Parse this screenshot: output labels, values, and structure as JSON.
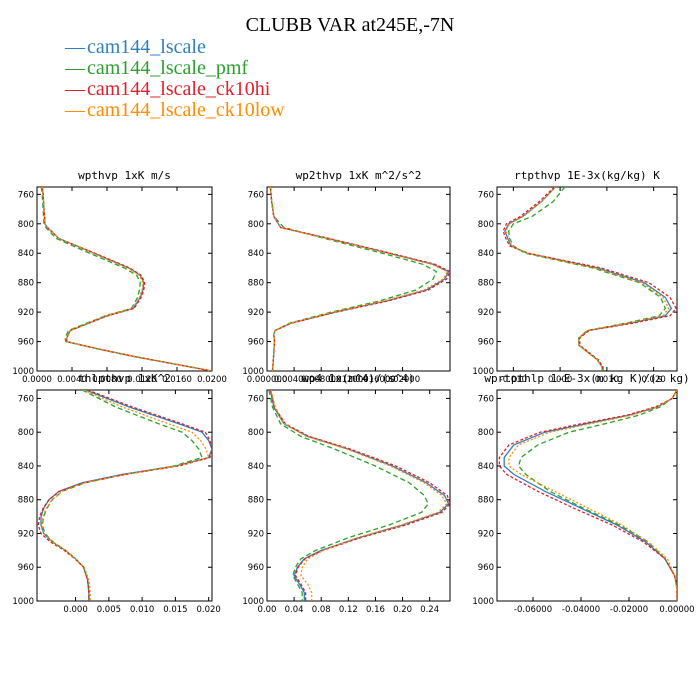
{
  "title": "CLUBB VAR at245E,-7N",
  "legend": [
    {
      "name": "cam144_lscale",
      "color": "#2f7fbf"
    },
    {
      "name": "cam144_lscale_pmf",
      "color": "#2ca02c"
    },
    {
      "name": "cam144_lscale_ck10hi",
      "color": "#e0202a"
    },
    {
      "name": "cam144_lscale_ck10low",
      "color": "#ff8c00"
    }
  ],
  "chart_data": [
    {
      "type": "line",
      "title": "wpthvp  1xK m/s",
      "xlim": [
        0,
        0.02
      ],
      "ylim": [
        1000,
        750
      ],
      "y_reversed": true,
      "xticks": [
        "0.0000",
        "0.0040",
        "0.0080",
        "0.0120",
        "0.0160",
        "0.0200"
      ],
      "xtick_values": [
        0,
        0.004,
        0.008,
        0.012,
        0.016,
        0.02
      ],
      "yticks": [
        "760",
        "800",
        "840",
        "880",
        "920",
        "960",
        "1000"
      ],
      "ytick_values": [
        760,
        800,
        840,
        880,
        920,
        960,
        1000
      ],
      "y": [
        750,
        760,
        780,
        800,
        805,
        820,
        840,
        860,
        870,
        880,
        890,
        900,
        915,
        925,
        945,
        950,
        955,
        960,
        970,
        980,
        990,
        1000
      ],
      "series": [
        {
          "x": [
            0.0006,
            0.0007,
            0.0008,
            0.0009,
            0.0012,
            0.0025,
            0.0065,
            0.0105,
            0.0118,
            0.0122,
            0.0121,
            0.0118,
            0.011,
            0.008,
            0.0038,
            0.0036,
            0.0034,
            0.0034,
            0.007,
            0.011,
            0.0155,
            0.02
          ]
        },
        {
          "x": [
            0.0005,
            0.0006,
            0.0007,
            0.0008,
            0.001,
            0.0022,
            0.006,
            0.01,
            0.0114,
            0.0118,
            0.0117,
            0.0115,
            0.0108,
            0.0078,
            0.0036,
            0.0034,
            0.0032,
            0.0033,
            0.0069,
            0.0109,
            0.0154,
            0.02
          ]
        },
        {
          "x": [
            0.0006,
            0.0007,
            0.0008,
            0.0009,
            0.0012,
            0.0025,
            0.0066,
            0.0106,
            0.0119,
            0.0123,
            0.0122,
            0.0119,
            0.0111,
            0.0081,
            0.0038,
            0.0036,
            0.0034,
            0.0034,
            0.007,
            0.011,
            0.0155,
            0.02
          ]
        },
        {
          "x": [
            0.0006,
            0.0007,
            0.0008,
            0.0009,
            0.0012,
            0.0025,
            0.0064,
            0.0104,
            0.0117,
            0.0121,
            0.012,
            0.0117,
            0.0109,
            0.0079,
            0.0038,
            0.0036,
            0.0034,
            0.0034,
            0.007,
            0.011,
            0.0155,
            0.02
          ]
        }
      ]
    },
    {
      "type": "line",
      "title": "wp2thvp  1xK m^2/s^2",
      "xlim": [
        0,
        0.027
      ],
      "ylim": [
        1000,
        750
      ],
      "y_reversed": true,
      "xticks": [
        "0.000000",
        "0.004000",
        "0.008000",
        "0.012000",
        "0.016000",
        "0.02000"
      ],
      "xtick_values": [
        0,
        0.004,
        0.008,
        0.012,
        0.016,
        0.02
      ],
      "yticks": [
        "760",
        "800",
        "840",
        "880",
        "920",
        "960",
        "1000"
      ],
      "ytick_values": [
        760,
        800,
        840,
        880,
        920,
        960,
        1000
      ],
      "y": [
        750,
        770,
        790,
        805,
        820,
        840,
        855,
        865,
        875,
        890,
        905,
        920,
        935,
        945,
        950,
        960,
        975,
        990,
        1000
      ],
      "series": [
        {
          "x": [
            0.0005,
            0.0007,
            0.001,
            0.002,
            0.009,
            0.018,
            0.0245,
            0.0268,
            0.0262,
            0.0235,
            0.0175,
            0.01,
            0.0035,
            0.0012,
            0.001,
            0.0011,
            0.001,
            0.0009,
            0.0008
          ]
        },
        {
          "x": [
            0.0005,
            0.0007,
            0.001,
            0.0025,
            0.0085,
            0.017,
            0.023,
            0.025,
            0.0245,
            0.022,
            0.0165,
            0.0095,
            0.0033,
            0.0012,
            0.001,
            0.0011,
            0.001,
            0.0009,
            0.0008
          ]
        },
        {
          "x": [
            0.0005,
            0.0007,
            0.001,
            0.002,
            0.0092,
            0.0182,
            0.0248,
            0.027,
            0.0265,
            0.0238,
            0.0178,
            0.0102,
            0.0036,
            0.0012,
            0.001,
            0.0011,
            0.001,
            0.0009,
            0.0008
          ]
        },
        {
          "x": [
            0.0005,
            0.0007,
            0.001,
            0.002,
            0.0088,
            0.0178,
            0.0243,
            0.0266,
            0.026,
            0.0232,
            0.0172,
            0.0098,
            0.0034,
            0.0012,
            0.001,
            0.0011,
            0.001,
            0.0009,
            0.0008
          ]
        }
      ]
    },
    {
      "type": "line",
      "title": "rtpthvp  1E-3x(kg/kg) K",
      "xlim": [
        -0.0135,
        0.025
      ],
      "ylim": [
        1000,
        750
      ],
      "y_reversed": true,
      "xticks": [
        "-0.010",
        "0.000",
        "0.010",
        "0.020"
      ],
      "xtick_values": [
        -0.01,
        0,
        0.01,
        0.02
      ],
      "yticks": [
        "760",
        "800",
        "840",
        "880",
        "920",
        "960",
        "1000"
      ],
      "ytick_values": [
        760,
        800,
        840,
        880,
        920,
        960,
        1000
      ],
      "y": [
        750,
        770,
        790,
        800,
        810,
        820,
        830,
        840,
        860,
        880,
        900,
        915,
        925,
        935,
        945,
        955,
        965,
        975,
        985,
        995,
        1000
      ],
      "series": [
        {
          "x": [
            -0.001,
            -0.004,
            -0.008,
            -0.011,
            -0.0118,
            -0.0112,
            -0.0105,
            -0.007,
            0.008,
            0.018,
            0.0225,
            0.0238,
            0.0225,
            0.015,
            0.006,
            0.004,
            0.004,
            0.006,
            0.008,
            0.009,
            0.009
          ]
        },
        {
          "x": [
            0.001,
            -0.0015,
            -0.006,
            -0.01,
            -0.011,
            -0.0108,
            -0.01,
            -0.0075,
            0.007,
            0.017,
            0.0215,
            0.0225,
            0.0212,
            0.014,
            0.0058,
            0.004,
            0.004,
            0.006,
            0.008,
            0.009,
            0.009
          ]
        },
        {
          "x": [
            -0.0012,
            -0.0045,
            -0.0085,
            -0.0115,
            -0.0122,
            -0.0116,
            -0.0108,
            -0.0068,
            0.0088,
            0.019,
            0.0235,
            0.0248,
            0.0235,
            0.0155,
            0.0062,
            0.0042,
            0.0042,
            0.0062,
            0.0082,
            0.0092,
            0.0092
          ]
        },
        {
          "x": [
            -0.001,
            -0.004,
            -0.0078,
            -0.0108,
            -0.0116,
            -0.011,
            -0.0103,
            -0.0072,
            0.0075,
            0.0175,
            0.022,
            0.0232,
            0.022,
            0.0145,
            0.0058,
            0.004,
            0.004,
            0.006,
            0.008,
            0.009,
            0.0095
          ]
        }
      ]
    },
    {
      "type": "line",
      "title": "thlpthvp  1xK^2",
      "xlim": [
        -0.0058,
        0.0205
      ],
      "ylim": [
        1000,
        750
      ],
      "y_reversed": true,
      "xticks": [
        "0.000",
        "0.005",
        "0.010",
        "0.015",
        "0.020"
      ],
      "xtick_values": [
        0,
        0.005,
        0.01,
        0.015,
        0.02
      ],
      "yticks": [
        "760",
        "800",
        "840",
        "880",
        "920",
        "960",
        "1000"
      ],
      "ytick_values": [
        760,
        800,
        840,
        880,
        920,
        960,
        1000
      ],
      "y": [
        750,
        770,
        790,
        800,
        810,
        820,
        830,
        840,
        850,
        860,
        870,
        880,
        890,
        900,
        910,
        920,
        930,
        940,
        950,
        960,
        975,
        990,
        1000
      ],
      "series": [
        {
          "x": [
            0.0015,
            0.008,
            0.0155,
            0.019,
            0.02,
            0.0205,
            0.02,
            0.015,
            0.007,
            0.001,
            -0.0025,
            -0.004,
            -0.0048,
            -0.0052,
            -0.0052,
            -0.0048,
            -0.0035,
            -0.0015,
            0.0,
            0.0012,
            0.0018,
            0.002,
            0.002
          ]
        },
        {
          "x": [
            0.001,
            0.006,
            0.0125,
            0.016,
            0.0175,
            0.0185,
            0.019,
            0.0148,
            0.0075,
            0.0015,
            -0.002,
            -0.0035,
            -0.0043,
            -0.0048,
            -0.005,
            -0.0046,
            -0.0034,
            -0.0015,
            0.0,
            0.0012,
            0.0018,
            0.002,
            0.002
          ]
        },
        {
          "x": [
            0.0018,
            0.0085,
            0.016,
            0.0195,
            0.0202,
            0.0205,
            0.0202,
            0.0155,
            0.0075,
            0.0012,
            -0.0024,
            -0.004,
            -0.0049,
            -0.0054,
            -0.0056,
            -0.0052,
            -0.0038,
            -0.0017,
            -0.0001,
            0.0012,
            0.0018,
            0.002,
            0.002
          ]
        },
        {
          "x": [
            0.0012,
            0.007,
            0.014,
            0.0175,
            0.0188,
            0.0196,
            0.02,
            0.0152,
            0.0075,
            0.0014,
            -0.002,
            -0.0035,
            -0.0044,
            -0.0049,
            -0.0051,
            -0.0047,
            -0.0035,
            -0.0015,
            0.0,
            0.0013,
            0.002,
            0.0022,
            0.0022
          ]
        }
      ]
    },
    {
      "type": "line",
      "title": "wp4  1x(m^4)/(s^4)",
      "xlim": [
        0,
        0.27
      ],
      "ylim": [
        1000,
        750
      ],
      "y_reversed": true,
      "xticks": [
        "0.00",
        "0.04",
        "0.08",
        "0.12",
        "0.16",
        "0.20",
        "0.24"
      ],
      "xtick_values": [
        0,
        0.04,
        0.08,
        0.12,
        0.16,
        0.2,
        0.24
      ],
      "yticks": [
        "760",
        "800",
        "840",
        "880",
        "920",
        "960",
        "1000"
      ],
      "ytick_values": [
        760,
        800,
        840,
        880,
        920,
        960,
        1000
      ],
      "y": [
        750,
        770,
        790,
        805,
        820,
        840,
        860,
        875,
        885,
        895,
        910,
        925,
        940,
        950,
        960,
        970,
        980,
        990,
        1000
      ],
      "series": [
        {
          "x": [
            0.005,
            0.01,
            0.025,
            0.06,
            0.12,
            0.185,
            0.235,
            0.262,
            0.268,
            0.255,
            0.2,
            0.135,
            0.08,
            0.055,
            0.045,
            0.04,
            0.048,
            0.055,
            0.055
          ]
        },
        {
          "x": [
            0.003,
            0.008,
            0.02,
            0.05,
            0.1,
            0.16,
            0.21,
            0.232,
            0.238,
            0.228,
            0.18,
            0.12,
            0.072,
            0.05,
            0.042,
            0.038,
            0.045,
            0.052,
            0.052
          ]
        },
        {
          "x": [
            0.005,
            0.011,
            0.027,
            0.062,
            0.123,
            0.19,
            0.24,
            0.266,
            0.27,
            0.258,
            0.205,
            0.138,
            0.082,
            0.056,
            0.046,
            0.042,
            0.05,
            0.057,
            0.057
          ]
        },
        {
          "x": [
            0.006,
            0.012,
            0.026,
            0.058,
            0.118,
            0.182,
            0.232,
            0.258,
            0.265,
            0.252,
            0.198,
            0.133,
            0.083,
            0.06,
            0.052,
            0.05,
            0.06,
            0.066,
            0.066
          ]
        }
      ]
    },
    {
      "type": "line",
      "title": "wprtpthlp  1-E-3x(m kg K)/(s kg)",
      "xlim": [
        -0.075,
        0.0
      ],
      "ylim": [
        1000,
        750
      ],
      "y_reversed": true,
      "xticks": [
        "-0.06000",
        "-0.04000",
        "-0.02000",
        "0.00000"
      ],
      "xtick_values": [
        -0.06,
        -0.04,
        -0.02,
        0
      ],
      "yticks": [
        "760",
        "800",
        "840",
        "880",
        "920",
        "960",
        "1000"
      ],
      "ytick_values": [
        760,
        800,
        840,
        880,
        920,
        960,
        1000
      ],
      "y": [
        750,
        760,
        770,
        780,
        790,
        800,
        815,
        830,
        840,
        850,
        870,
        890,
        910,
        930,
        950,
        970,
        985,
        995,
        1000
      ],
      "series": [
        {
          "x": [
            0.0,
            -0.002,
            -0.008,
            -0.02,
            -0.038,
            -0.055,
            -0.068,
            -0.072,
            -0.072,
            -0.068,
            -0.055,
            -0.04,
            -0.025,
            -0.013,
            -0.005,
            -0.001,
            0.0,
            0.0,
            0.0
          ]
        },
        {
          "x": [
            0.0,
            -0.002,
            -0.007,
            -0.016,
            -0.03,
            -0.045,
            -0.058,
            -0.065,
            -0.066,
            -0.063,
            -0.053,
            -0.039,
            -0.024,
            -0.012,
            -0.005,
            -0.001,
            0.0,
            0.0,
            0.0
          ]
        },
        {
          "x": [
            0.0,
            -0.002,
            -0.009,
            -0.021,
            -0.04,
            -0.057,
            -0.07,
            -0.074,
            -0.074,
            -0.071,
            -0.058,
            -0.043,
            -0.027,
            -0.014,
            -0.005,
            -0.001,
            0.0,
            0.0,
            0.0
          ]
        },
        {
          "x": [
            0.0,
            -0.002,
            -0.008,
            -0.019,
            -0.036,
            -0.053,
            -0.066,
            -0.07,
            -0.07,
            -0.065,
            -0.051,
            -0.037,
            -0.023,
            -0.012,
            -0.004,
            -0.001,
            0.0,
            0.0,
            0.0
          ]
        }
      ]
    }
  ]
}
